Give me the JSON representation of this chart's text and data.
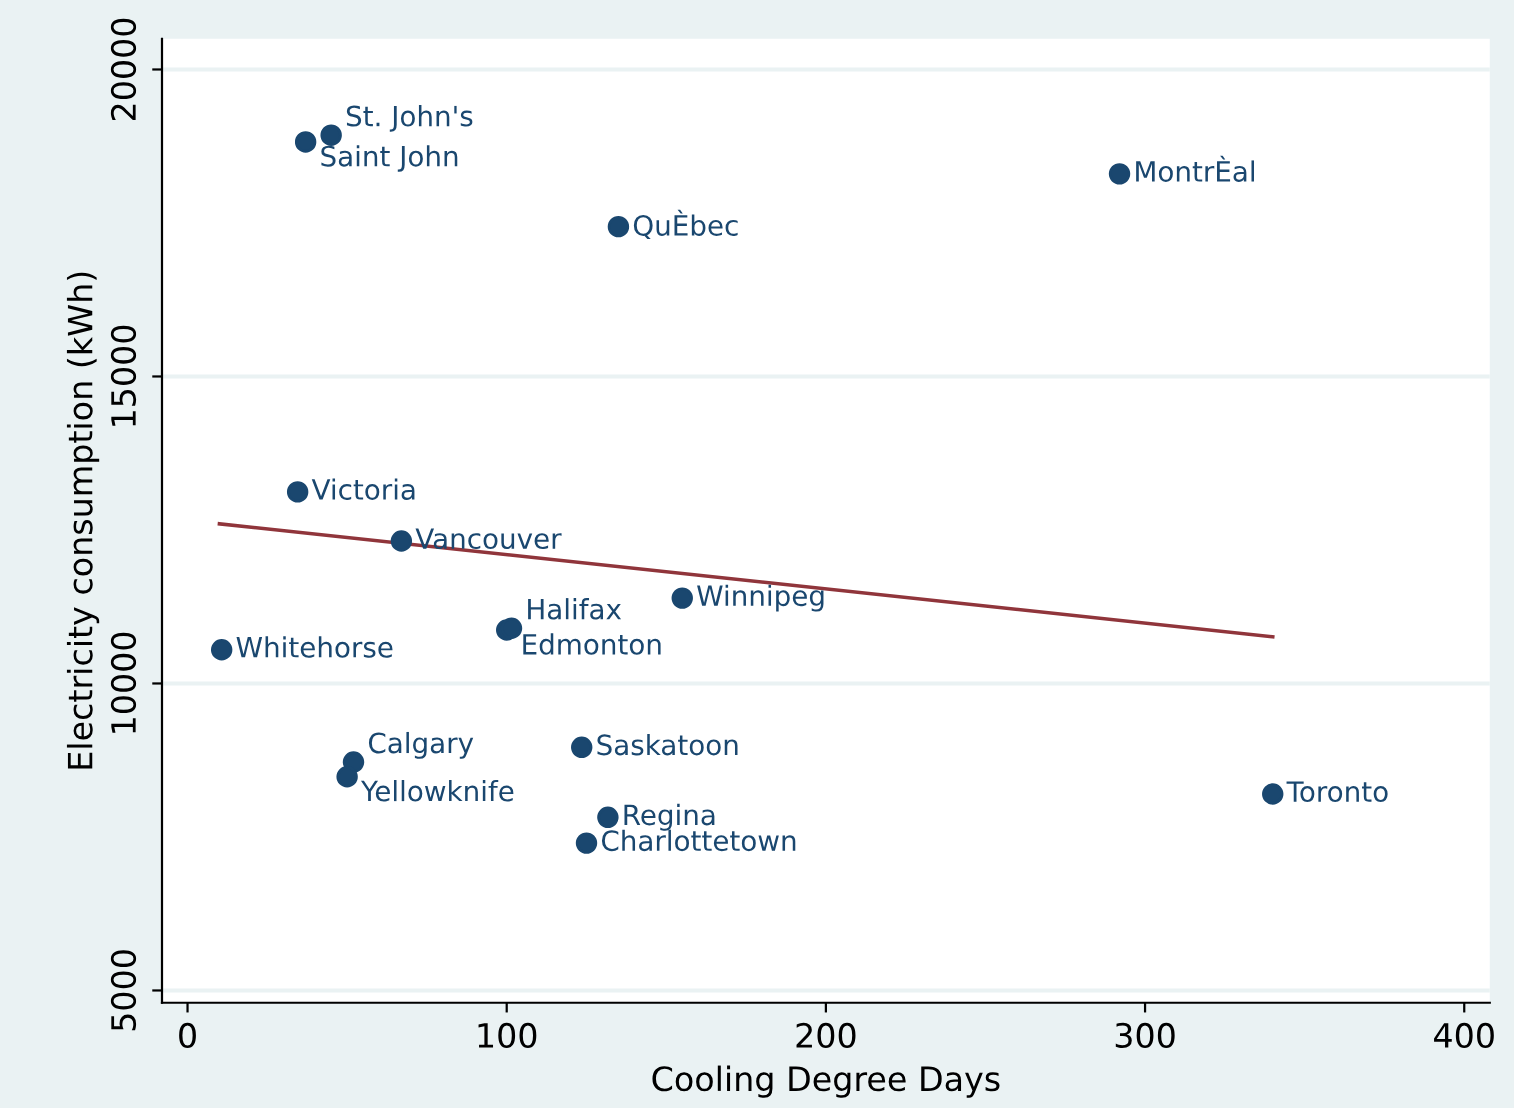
{
  "chart_data": {
    "type": "scatter",
    "xlabel": "Cooling Degree Days",
    "ylabel": "Electricity consumption (kWh)",
    "xlim": [
      -8,
      408
    ],
    "ylim": [
      4800,
      20500
    ],
    "xticks": [
      0,
      100,
      200,
      300,
      400
    ],
    "yticks": [
      5000,
      10000,
      15000,
      20000
    ],
    "grid": "y",
    "marker": "circle",
    "legend": false,
    "series": [
      {
        "color": "#1a476f",
        "x": [
          45,
          37,
          135,
          292,
          34.5,
          67,
          155,
          100,
          101.5,
          10.7,
          52,
          50,
          123.5,
          131.7,
          125,
          340
        ],
        "values": [
          18930,
          18820,
          17440,
          18300,
          13120,
          12320,
          11390,
          10870,
          10900,
          10550,
          8720,
          8480,
          8960,
          7820,
          7400,
          8200
        ]
      },
      {
        "type": "line",
        "color": "#90353b",
        "x": [
          10,
          340
        ],
        "values": [
          12600,
          10760
        ],
        "marker": "none"
      }
    ],
    "annotations": [
      {
        "text": "St. John's",
        "x": 45,
        "y": 18930
      },
      {
        "text": "Saint John",
        "x": 37,
        "y": 18820
      },
      {
        "text": "QuÈbec",
        "x": 135,
        "y": 17440
      },
      {
        "text": "MontrÈal",
        "x": 292,
        "y": 18300
      },
      {
        "text": "Victoria",
        "x": 34.5,
        "y": 13120
      },
      {
        "text": "Vancouver",
        "x": 67,
        "y": 12320
      },
      {
        "text": "Winnipeg",
        "x": 155,
        "y": 11390
      },
      {
        "text": "Edmonton",
        "x": 100,
        "y": 10870
      },
      {
        "text": "Halifax",
        "x": 101.5,
        "y": 10900
      },
      {
        "text": "Whitehorse",
        "x": 10.7,
        "y": 10550
      },
      {
        "text": "Calgary",
        "x": 52,
        "y": 8720
      },
      {
        "text": "Yellowknife",
        "x": 50,
        "y": 8480
      },
      {
        "text": "Saskatoon",
        "x": 123.5,
        "y": 8960
      },
      {
        "text": "Regina",
        "x": 131.7,
        "y": 7820
      },
      {
        "text": "Charlottetown",
        "x": 125,
        "y": 7400
      },
      {
        "text": "Toronto",
        "x": 340,
        "y": 8200
      }
    ]
  }
}
